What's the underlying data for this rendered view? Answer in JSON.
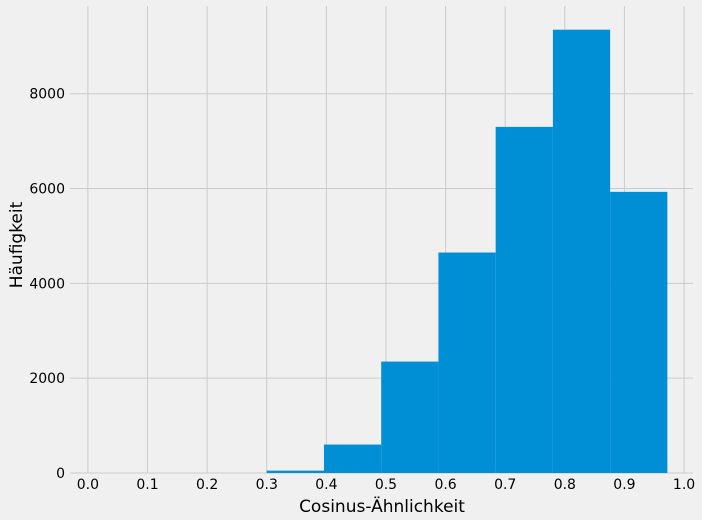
{
  "chart_data": {
    "type": "bar",
    "style": "histogram",
    "title": "",
    "xlabel": "Cosinus-Ähnlichkeit",
    "ylabel": "Häufigkeit",
    "xlim": [
      -0.03,
      1.015
    ],
    "ylim": [
      0,
      9850
    ],
    "xticks": [
      "0.0",
      "0.1",
      "0.2",
      "0.3",
      "0.4",
      "0.5",
      "0.6",
      "0.7",
      "0.8",
      "0.9",
      "1.0"
    ],
    "yticks": [
      "0",
      "2000",
      "4000",
      "6000",
      "8000"
    ],
    "grid": true,
    "bar_color": "#008fd5",
    "background_color": "#f0f0f0",
    "grid_color": "#cbcbcb",
    "bins": [
      {
        "x0": 0.3,
        "x1": 0.396,
        "value": 50
      },
      {
        "x0": 0.396,
        "x1": 0.492,
        "value": 600
      },
      {
        "x0": 0.492,
        "x1": 0.588,
        "value": 2350
      },
      {
        "x0": 0.588,
        "x1": 0.684,
        "value": 4650
      },
      {
        "x0": 0.684,
        "x1": 0.78,
        "value": 7300
      },
      {
        "x0": 0.78,
        "x1": 0.876,
        "value": 9350
      },
      {
        "x0": 0.876,
        "x1": 0.972,
        "value": 5930
      }
    ]
  }
}
